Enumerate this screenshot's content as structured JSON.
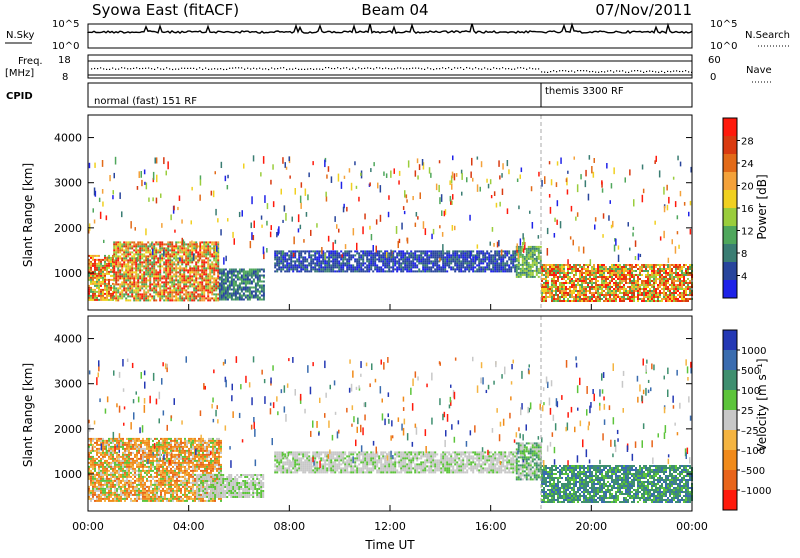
{
  "header": {
    "title_left": "Syowa East (fitACF)",
    "title_center": "Beam 04",
    "title_right": "07/Nov/2011"
  },
  "strip": {
    "nsky_label": "N.Sky",
    "nsky_top": "10^5",
    "nsky_bottom": "10^0",
    "nsearch_label": "N.Search",
    "nsearch_top": "10^5",
    "nsearch_bottom": "10^0",
    "freq_label_1": "Freq.",
    "freq_label_2": "[MHz]",
    "freq_top": "18",
    "freq_bottom": "8",
    "nave_label": "Nave",
    "nave_top": "60",
    "nave_bottom": "0",
    "cpid_label": "CPID",
    "cpid_mode_1": "normal (fast) 151 RF",
    "cpid_mode_2": "themis 3300 RF",
    "cpid_change_hour": 18
  },
  "chart_data": [
    {
      "type": "heatmap",
      "title": "",
      "ylabel": "Slant Range [km]",
      "xlabel": "",
      "xlim": [
        0,
        24
      ],
      "ylim": [
        180,
        4500
      ],
      "y_ticks": [
        "1000",
        "2000",
        "3000",
        "4000"
      ],
      "colorbar": {
        "label": "Power [dB]",
        "tick_labels": [
          "4",
          "8",
          "12",
          "16",
          "20",
          "24",
          "28"
        ],
        "colors": [
          "#1e22e8",
          "#28459c",
          "#3a7d73",
          "#4fa75c",
          "#9acd3c",
          "#f0d020",
          "#f4a23a",
          "#e26a18",
          "#d93a10",
          "#ff1a0c"
        ]
      },
      "regions": [
        {
          "hours": [
            0.0,
            1.0
          ],
          "range_km": [
            420,
            1400
          ],
          "level": "18-28 dB"
        },
        {
          "hours": [
            1.0,
            5.2
          ],
          "range_km": [
            400,
            1700
          ],
          "level": "16-28 dB"
        },
        {
          "hours": [
            5.2,
            7.0
          ],
          "range_km": [
            420,
            1100
          ],
          "level": "6-14 dB"
        },
        {
          "hours": [
            7.4,
            17.0
          ],
          "range_km": [
            1050,
            1500
          ],
          "level": "2-8 dB"
        },
        {
          "hours": [
            17.0,
            18.0
          ],
          "range_km": [
            900,
            1600
          ],
          "level": "8-14 dB"
        },
        {
          "hours": [
            18.0,
            24.0
          ],
          "range_km": [
            400,
            1200
          ],
          "level": "18-30 dB"
        }
      ]
    },
    {
      "type": "heatmap",
      "title": "",
      "ylabel": "Slant Range [km]",
      "xlabel": "Time UT",
      "xlim": [
        0,
        24
      ],
      "ylim": [
        180,
        4500
      ],
      "x_ticks": [
        "00:00",
        "04:00",
        "08:00",
        "12:00",
        "16:00",
        "20:00",
        "00:00"
      ],
      "y_ticks": [
        "1000",
        "2000",
        "3000",
        "4000"
      ],
      "colorbar": {
        "label": "Velocity [m s⁻¹]",
        "tick_labels": [
          "1000",
          "500",
          "100",
          "25",
          "–25",
          "–100",
          "–500",
          "–1000"
        ],
        "colors": [
          "#2438b4",
          "#3a6caf",
          "#3f8f6f",
          "#5cc43a",
          "#c8c8c8",
          "#f4b441",
          "#f08a1a",
          "#e8641a",
          "#ff1a0c"
        ]
      },
      "regions": [
        {
          "hours": [
            0.0,
            5.3
          ],
          "range_km": [
            400,
            1800
          ],
          "level": "-100 to -500 m/s"
        },
        {
          "hours": [
            4.3,
            7.0
          ],
          "range_km": [
            500,
            1000
          ],
          "level": "-25 to 25 m/s"
        },
        {
          "hours": [
            7.4,
            17.0
          ],
          "range_km": [
            1050,
            1500
          ],
          "level": "-25 to 25 m/s"
        },
        {
          "hours": [
            17.0,
            18.0
          ],
          "range_km": [
            900,
            1700
          ],
          "level": "25 to 100 m/s"
        },
        {
          "hours": [
            18.0,
            24.0
          ],
          "range_km": [
            400,
            1200
          ],
          "level": "100 to 500 m/s"
        }
      ]
    }
  ]
}
